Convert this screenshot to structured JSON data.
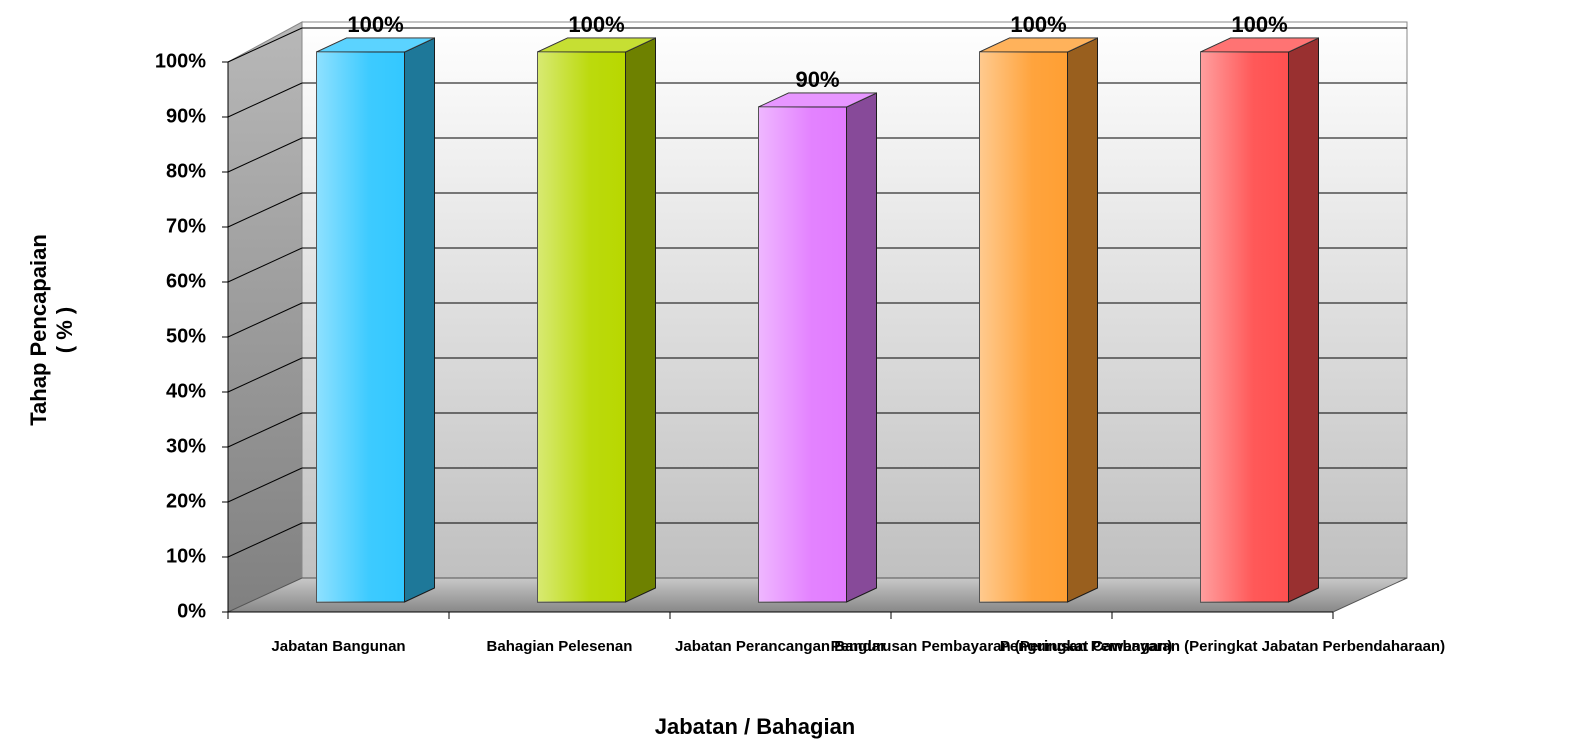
{
  "chart_data": {
    "type": "bar3d",
    "ylabel": [
      "Tahap Pencapaian",
      "( % )"
    ],
    "xlabel": "Jabatan / Bahagian",
    "categories": [
      "Jabatan Bangunan",
      "Bahagian Pelesenan",
      "Jabatan Perancangan Bandar",
      "Pengurusan Pembayaran (Peringkat Cawangan)",
      "Pengurusan Pembayaran (Peringkat Jabatan Perbendaharaan)"
    ],
    "values": [
      100,
      100,
      90,
      100,
      100
    ],
    "value_labels": [
      "100%",
      "100%",
      "90%",
      "100%",
      "100%"
    ],
    "colors": [
      "#33c8ff",
      "#b8d800",
      "#e27cff",
      "#ff9f33",
      "#ff5050"
    ],
    "ylim": [
      0,
      100
    ],
    "yticks": [
      {
        "value": 0,
        "label": "0%"
      },
      {
        "value": 10,
        "label": "10%"
      },
      {
        "value": 20,
        "label": "20%"
      },
      {
        "value": 30,
        "label": "30%"
      },
      {
        "value": 40,
        "label": "40%"
      },
      {
        "value": 50,
        "label": "50%"
      },
      {
        "value": 60,
        "label": "60%"
      },
      {
        "value": 70,
        "label": "70%"
      },
      {
        "value": 80,
        "label": "80%"
      },
      {
        "value": 90,
        "label": "90%"
      },
      {
        "value": 100,
        "label": "100%"
      }
    ],
    "grid": true
  }
}
